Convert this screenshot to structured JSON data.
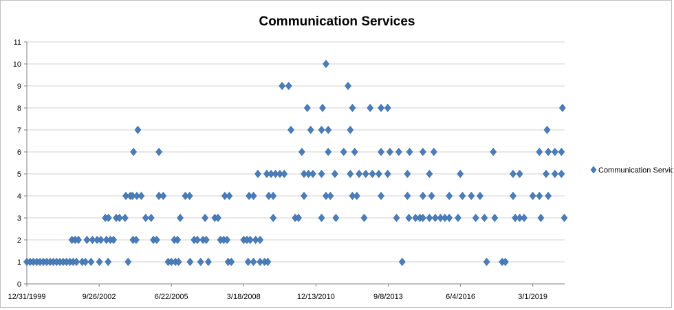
{
  "chart_data": {
    "type": "scatter",
    "title": "Communication Services",
    "xlabel": "",
    "ylabel": "",
    "ylim": [
      0,
      11
    ],
    "yticks": [
      "0",
      "1",
      "2",
      "3",
      "4",
      "5",
      "6",
      "7",
      "8",
      "9",
      "10",
      "11"
    ],
    "xlim": [
      "1999-12-31",
      "2020-05-15"
    ],
    "xticks": [
      {
        "date": "1999-12-31",
        "label": "12/31/1999"
      },
      {
        "date": "2002-09-26",
        "label": "9/26/2002"
      },
      {
        "date": "2005-06-22",
        "label": "6/22/2005"
      },
      {
        "date": "2008-03-18",
        "label": "3/18/2008"
      },
      {
        "date": "2010-12-13",
        "label": "12/13/2010"
      },
      {
        "date": "2013-09-08",
        "label": "9/8/2013"
      },
      {
        "date": "2016-06-04",
        "label": "6/4/2016"
      },
      {
        "date": "2019-03-01",
        "label": "3/1/2019"
      }
    ],
    "grid": true,
    "legend_position": "right",
    "color": "#4a7ebb",
    "series": [
      {
        "name": "Communication Services",
        "points": [
          [
            "1999-12-31",
            1
          ],
          [
            "2000-02-14",
            1
          ],
          [
            "2000-03-31",
            1
          ],
          [
            "2000-05-16",
            1
          ],
          [
            "2000-07-01",
            1
          ],
          [
            "2000-08-16",
            1
          ],
          [
            "2000-10-01",
            1
          ],
          [
            "2000-11-16",
            1
          ],
          [
            "2000-12-31",
            1
          ],
          [
            "2001-02-15",
            1
          ],
          [
            "2001-04-02",
            1
          ],
          [
            "2001-05-17",
            1
          ],
          [
            "2001-07-02",
            1
          ],
          [
            "2001-08-17",
            1
          ],
          [
            "2001-10-02",
            1
          ],
          [
            "2001-11-17",
            1
          ],
          [
            "2001-09-15",
            2
          ],
          [
            "2001-10-30",
            2
          ],
          [
            "2001-12-14",
            2
          ],
          [
            "2002-04-11",
            2
          ],
          [
            "2002-06-26",
            2
          ],
          [
            "2002-08-30",
            2
          ],
          [
            "2002-10-20",
            2
          ],
          [
            "2003-01-05",
            2
          ],
          [
            "2003-03-01",
            2
          ],
          [
            "2003-04-14",
            2
          ],
          [
            "2004-01-08",
            2
          ],
          [
            "2004-02-20",
            2
          ],
          [
            "2004-10-16",
            2
          ],
          [
            "2004-12-01",
            2
          ],
          [
            "2005-08-01",
            2
          ],
          [
            "2005-09-15",
            2
          ],
          [
            "2006-05-02",
            2
          ],
          [
            "2006-06-16",
            2
          ],
          [
            "2006-09-02",
            2
          ],
          [
            "2006-10-17",
            2
          ],
          [
            "2007-05-02",
            2
          ],
          [
            "2007-06-16",
            2
          ],
          [
            "2007-08-01",
            2
          ],
          [
            "2008-03-18",
            2
          ],
          [
            "2008-05-02",
            2
          ],
          [
            "2008-06-16",
            2
          ],
          [
            "2008-08-31",
            2
          ],
          [
            "2008-10-31",
            2
          ],
          [
            "2002-02-04",
            1
          ],
          [
            "2002-03-21",
            1
          ],
          [
            "2002-06-06",
            1
          ],
          [
            "2002-10-01",
            1
          ],
          [
            "2003-01-29",
            1
          ],
          [
            "2003-11-01",
            1
          ],
          [
            "2005-05-08",
            1
          ],
          [
            "2005-06-22",
            1
          ],
          [
            "2005-08-16",
            1
          ],
          [
            "2005-09-30",
            1
          ],
          [
            "2006-03-08",
            1
          ],
          [
            "2006-08-01",
            1
          ],
          [
            "2006-11-15",
            1
          ],
          [
            "2007-08-16",
            1
          ],
          [
            "2007-09-30",
            1
          ],
          [
            "2008-05-18",
            1
          ],
          [
            "2008-08-01",
            1
          ],
          [
            "2008-10-31",
            1
          ],
          [
            "2009-01-01",
            1
          ],
          [
            "2009-02-15",
            1
          ],
          [
            "2014-03-20",
            1
          ],
          [
            "2017-06-01",
            1
          ],
          [
            "2018-01-01",
            1
          ],
          [
            "2018-02-15",
            1
          ],
          [
            "2002-12-21",
            3
          ],
          [
            "2003-02-04",
            3
          ],
          [
            "2003-05-21",
            3
          ],
          [
            "2003-07-05",
            3
          ],
          [
            "2003-09-20",
            3
          ],
          [
            "2004-07-01",
            3
          ],
          [
            "2004-09-15",
            3
          ],
          [
            "2005-10-22",
            3
          ],
          [
            "2006-10-01",
            3
          ],
          [
            "2007-02-13",
            3
          ],
          [
            "2007-03-30",
            3
          ],
          [
            "2009-05-01",
            3
          ],
          [
            "2010-03-01",
            3
          ],
          [
            "2010-04-16",
            3
          ],
          [
            "2011-03-01",
            3
          ],
          [
            "2011-09-15",
            3
          ],
          [
            "2012-10-10",
            3
          ],
          [
            "2014-01-01",
            3
          ],
          [
            "2014-06-21",
            3
          ],
          [
            "2014-09-21",
            3
          ],
          [
            "2014-11-21",
            3
          ],
          [
            "2015-01-01",
            3
          ],
          [
            "2015-04-01",
            3
          ],
          [
            "2015-06-21",
            3
          ],
          [
            "2015-09-01",
            3
          ],
          [
            "2015-11-01",
            3
          ],
          [
            "2016-01-01",
            3
          ],
          [
            "2016-05-01",
            3
          ],
          [
            "2017-01-01",
            3
          ],
          [
            "2017-05-01",
            3
          ],
          [
            "2017-09-21",
            3
          ],
          [
            "2018-07-01",
            3
          ],
          [
            "2018-09-01",
            3
          ],
          [
            "2018-11-01",
            3
          ],
          [
            "2019-06-21",
            3
          ],
          [
            "2020-05-10",
            3
          ],
          [
            "2003-10-01",
            4
          ],
          [
            "2003-12-01",
            4
          ],
          [
            "2004-01-01",
            4
          ],
          [
            "2004-03-01",
            4
          ],
          [
            "2004-05-01",
            4
          ],
          [
            "2005-01-01",
            4
          ],
          [
            "2005-03-01",
            4
          ],
          [
            "2006-01-01",
            4
          ],
          [
            "2006-03-01",
            4
          ],
          [
            "2007-07-01",
            4
          ],
          [
            "2007-09-01",
            4
          ],
          [
            "2008-06-01",
            4
          ],
          [
            "2008-08-01",
            4
          ],
          [
            "2009-03-01",
            4
          ],
          [
            "2009-05-01",
            4
          ],
          [
            "2010-07-01",
            4
          ],
          [
            "2011-05-01",
            4
          ],
          [
            "2011-07-01",
            4
          ],
          [
            "2012-05-01",
            4
          ],
          [
            "2012-07-01",
            4
          ],
          [
            "2013-06-01",
            4
          ],
          [
            "2014-06-01",
            4
          ],
          [
            "2015-01-01",
            4
          ],
          [
            "2015-05-01",
            4
          ],
          [
            "2016-01-01",
            4
          ],
          [
            "2016-07-01",
            4
          ],
          [
            "2016-11-01",
            4
          ],
          [
            "2017-03-01",
            4
          ],
          [
            "2018-06-01",
            4
          ],
          [
            "2019-03-01",
            4
          ],
          [
            "2019-06-01",
            4
          ],
          [
            "2019-10-01",
            4
          ],
          [
            "2008-10-01",
            5
          ],
          [
            "2009-02-01",
            5
          ],
          [
            "2009-04-01",
            5
          ],
          [
            "2009-06-01",
            5
          ],
          [
            "2009-08-01",
            5
          ],
          [
            "2009-10-01",
            5
          ],
          [
            "2010-07-01",
            5
          ],
          [
            "2010-09-01",
            5
          ],
          [
            "2010-11-01",
            5
          ],
          [
            "2011-03-01",
            5
          ],
          [
            "2011-09-01",
            5
          ],
          [
            "2012-04-01",
            5
          ],
          [
            "2012-08-01",
            5
          ],
          [
            "2012-11-01",
            5
          ],
          [
            "2013-02-01",
            5
          ],
          [
            "2013-05-01",
            5
          ],
          [
            "2013-09-01",
            5
          ],
          [
            "2014-06-01",
            5
          ],
          [
            "2015-04-01",
            5
          ],
          [
            "2016-06-01",
            5
          ],
          [
            "2018-06-01",
            5
          ],
          [
            "2018-09-01",
            5
          ],
          [
            "2019-09-01",
            5
          ],
          [
            "2020-01-01",
            5
          ],
          [
            "2020-04-01",
            5
          ],
          [
            "2004-01-15",
            6
          ],
          [
            "2005-01-01",
            6
          ],
          [
            "2010-06-01",
            6
          ],
          [
            "2011-06-01",
            6
          ],
          [
            "2012-01-01",
            6
          ],
          [
            "2012-06-01",
            6
          ],
          [
            "2013-06-01",
            6
          ],
          [
            "2013-10-01",
            6
          ],
          [
            "2014-02-01",
            6
          ],
          [
            "2014-07-01",
            6
          ],
          [
            "2015-01-01",
            6
          ],
          [
            "2015-06-01",
            6
          ],
          [
            "2017-09-01",
            6
          ],
          [
            "2019-06-01",
            6
          ],
          [
            "2019-10-01",
            6
          ],
          [
            "2020-01-01",
            6
          ],
          [
            "2020-04-01",
            6
          ],
          [
            "2004-03-15",
            7
          ],
          [
            "2010-01-01",
            7
          ],
          [
            "2010-10-01",
            7
          ],
          [
            "2011-03-01",
            7
          ],
          [
            "2011-06-01",
            7
          ],
          [
            "2012-04-01",
            7
          ],
          [
            "2019-09-15",
            7
          ],
          [
            "2010-08-15",
            8
          ],
          [
            "2011-03-15",
            8
          ],
          [
            "2012-05-01",
            8
          ],
          [
            "2013-01-01",
            8
          ],
          [
            "2013-06-01",
            8
          ],
          [
            "2013-09-01",
            8
          ],
          [
            "2020-04-15",
            8
          ],
          [
            "2009-09-01",
            9
          ],
          [
            "2009-12-01",
            9
          ],
          [
            "2012-03-01",
            9
          ],
          [
            "2011-05-01",
            10
          ]
        ]
      }
    ]
  }
}
